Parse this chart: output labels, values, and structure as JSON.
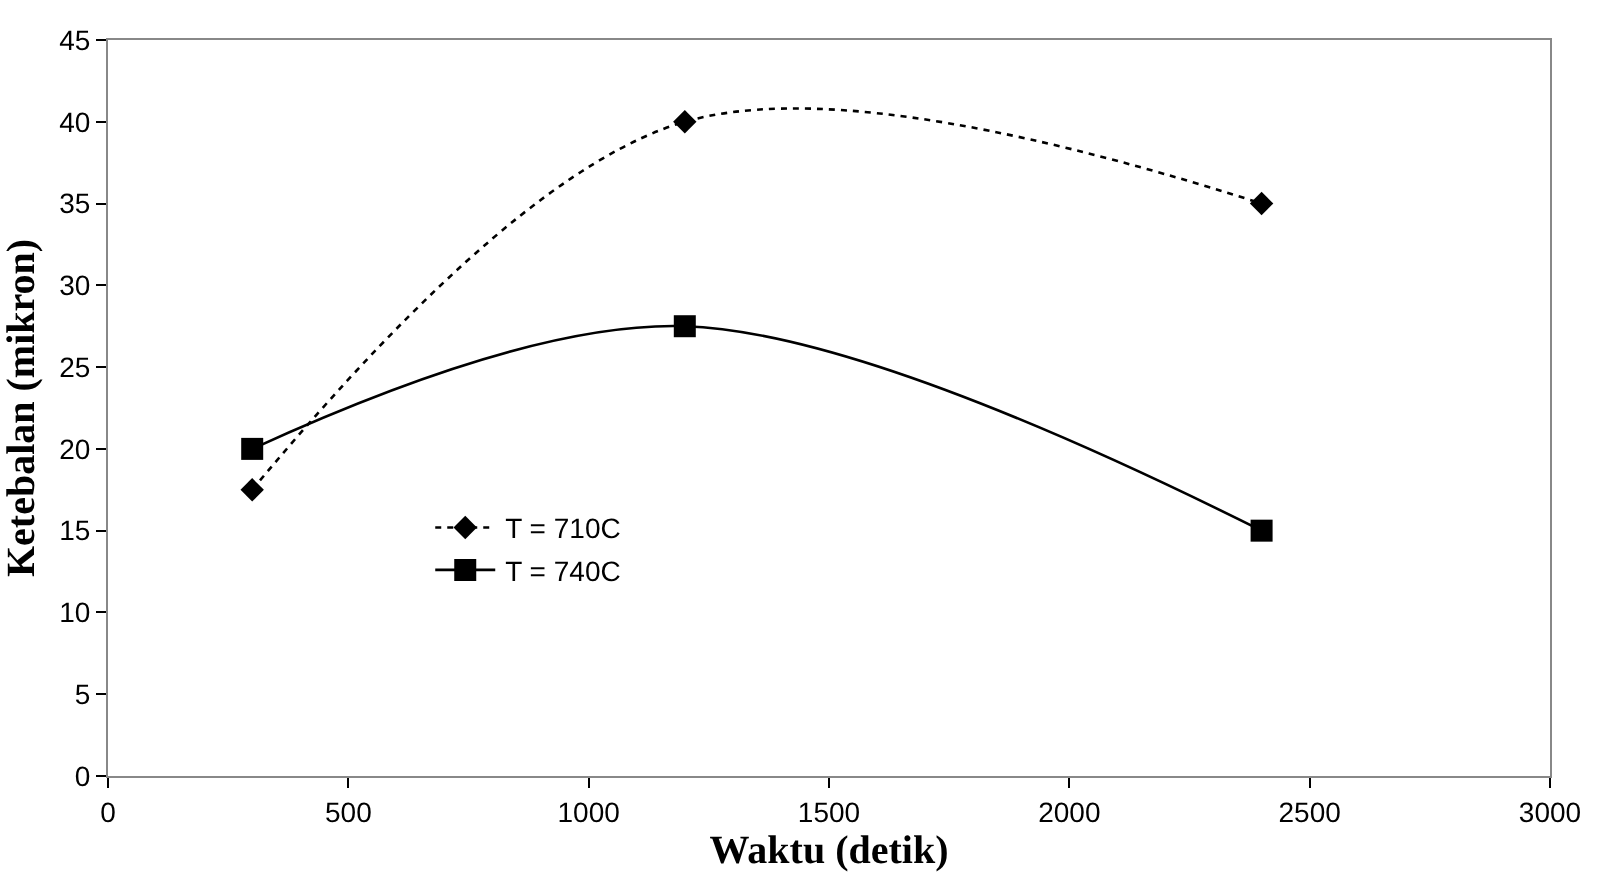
{
  "chart_data": {
    "type": "line",
    "xlabel": "Waktu (detik)",
    "ylabel": "Ketebalan (mikron)",
    "x": [
      300,
      1200,
      2400
    ],
    "series": [
      {
        "name": "T = 710C",
        "color": "#000000",
        "values": [
          17.5,
          40,
          35
        ],
        "marker": "diamond",
        "line_style": "dotted"
      },
      {
        "name": "T = 740C",
        "color": "#000000",
        "values": [
          20,
          27.5,
          15
        ],
        "marker": "square",
        "line_style": "solid"
      }
    ],
    "xlim": [
      0,
      3000
    ],
    "xticks": [
      0,
      500,
      1000,
      1500,
      2000,
      2500,
      3000
    ],
    "ylim": [
      0,
      45
    ],
    "yticks": [
      0,
      5,
      10,
      15,
      20,
      25,
      30,
      35,
      40,
      45
    ],
    "legend": "left"
  }
}
